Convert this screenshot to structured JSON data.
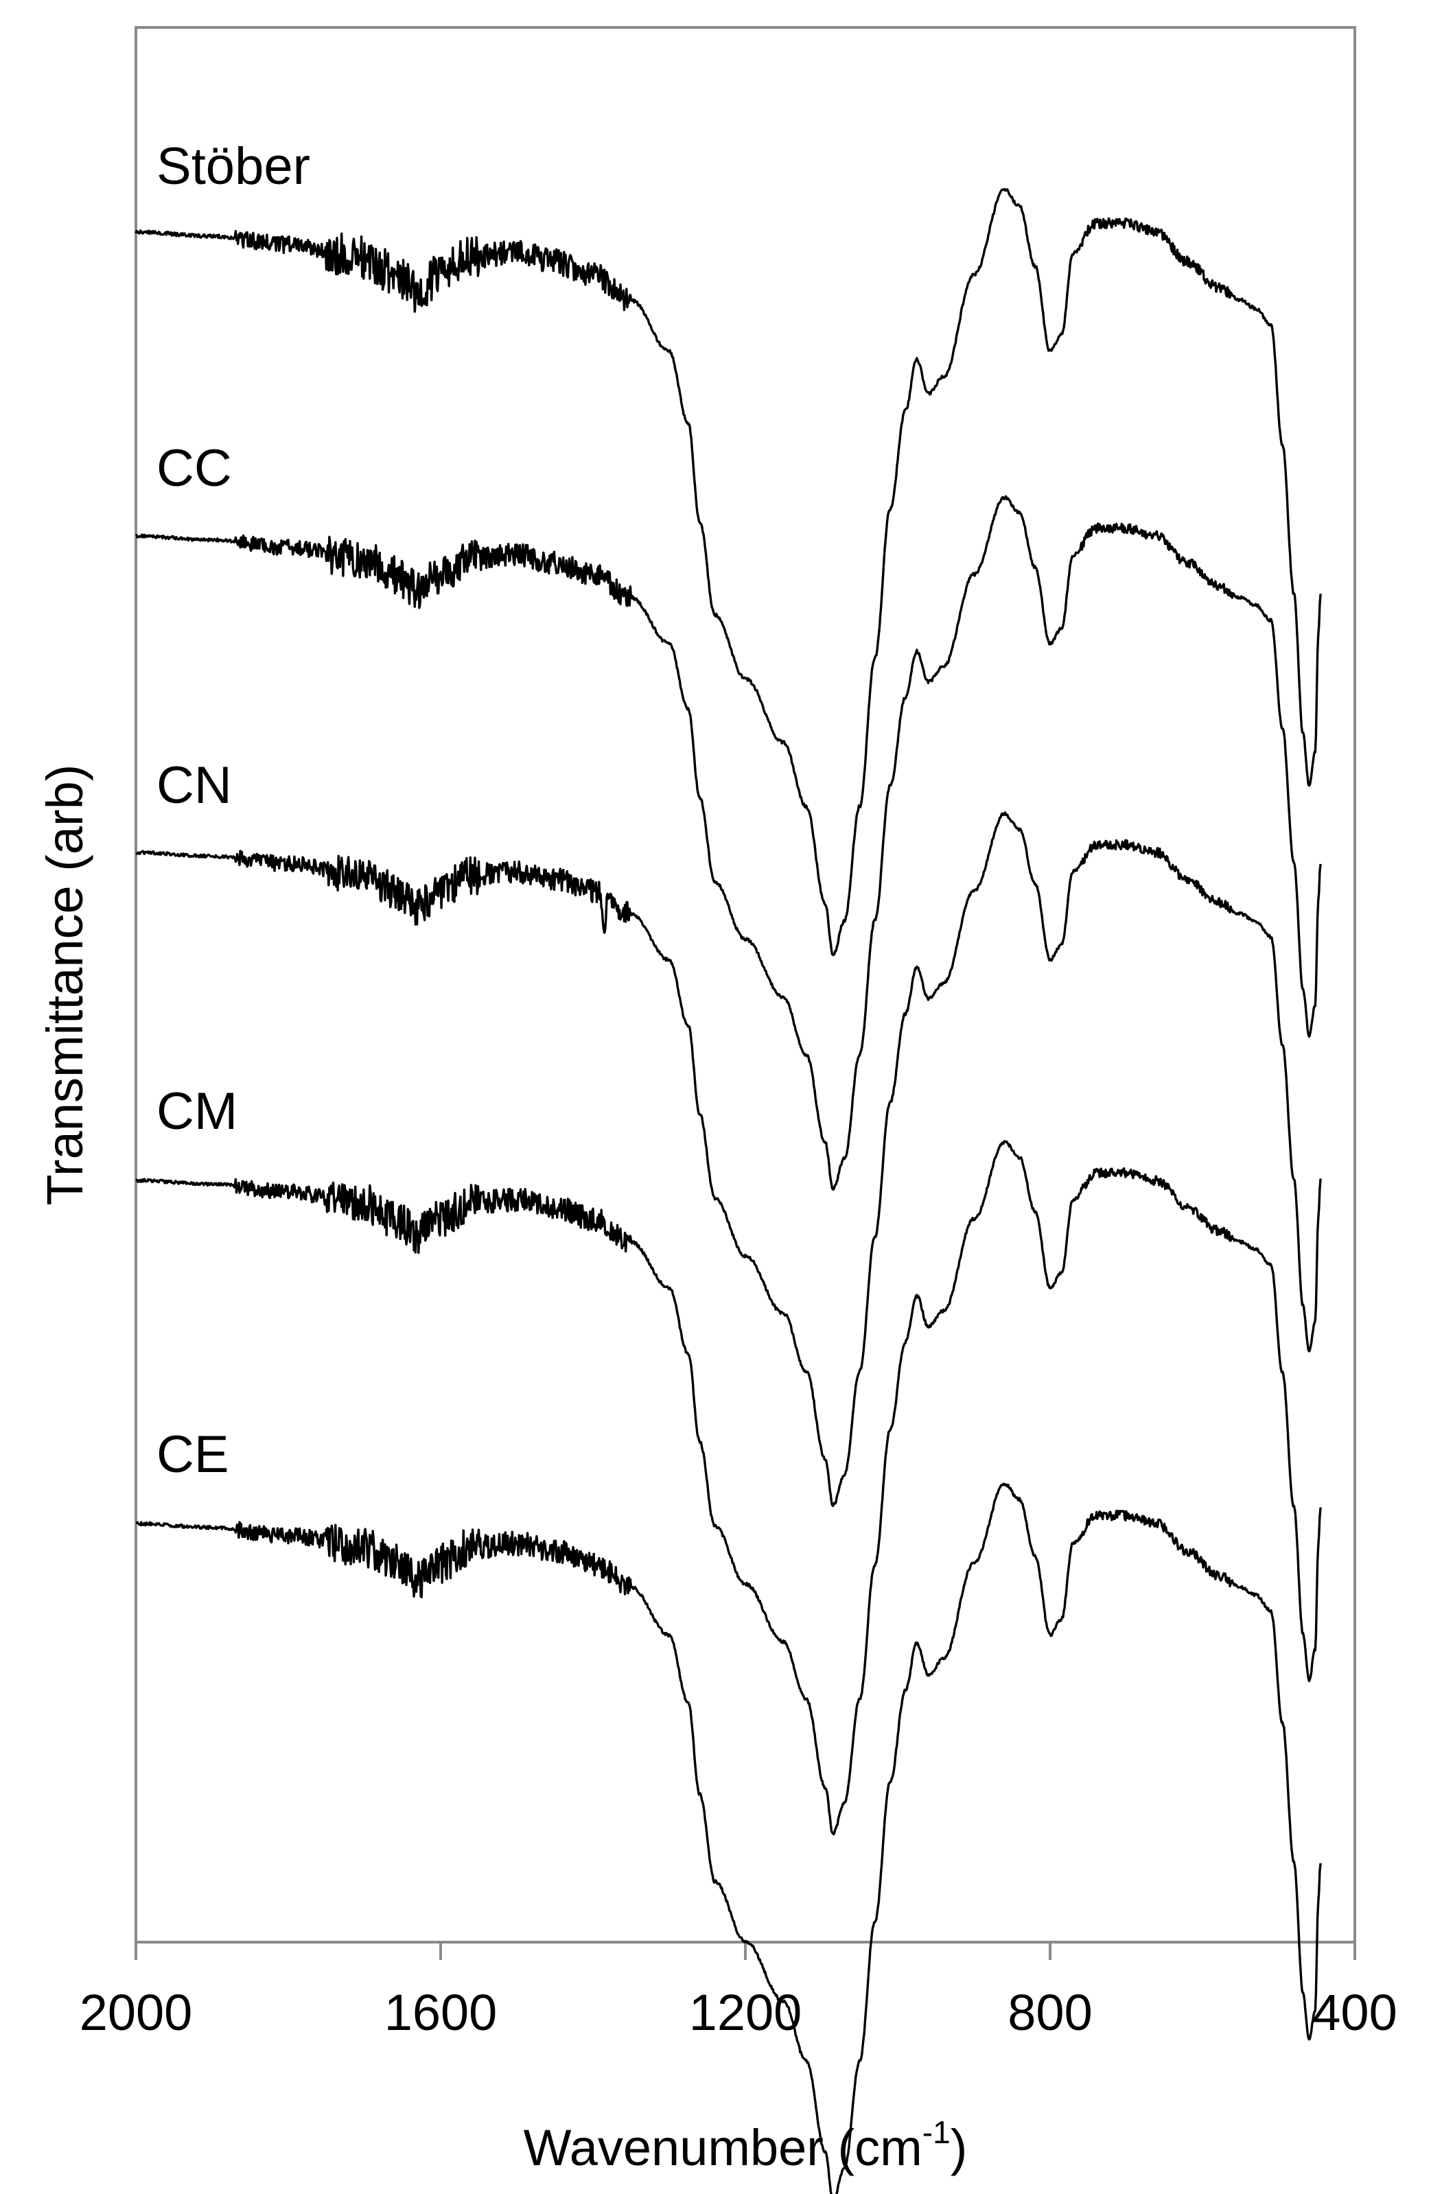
{
  "chart_data": {
    "type": "line",
    "title": "",
    "xlabel": "Wavenumber (cm",
    "xlabel_superscript": "-1",
    "xlabel_suffix": ")",
    "ylabel": "Transmittance (arb)",
    "xlim": [
      2000,
      400
    ],
    "x_reversed": true,
    "yticks_shown": false,
    "grid": false,
    "legend": "none (series labelled inline above each trace)",
    "xticks": [
      2000,
      1600,
      1200,
      800,
      400
    ],
    "x_end": 445,
    "series_shape": {
      "description": "Offset FTIR transmittance traces; values are relative transmittance, 1 = flat baseline at 2000 cm-1, larger dips = stronger absorption",
      "points": [
        [
          2000,
          1.0
        ],
        [
          1900,
          0.99
        ],
        [
          1800,
          0.97
        ],
        [
          1700,
          0.94
        ],
        [
          1660,
          0.9
        ],
        [
          1630,
          0.86
        ],
        [
          1600,
          0.9
        ],
        [
          1560,
          0.94
        ],
        [
          1500,
          0.95
        ],
        [
          1450,
          0.93
        ],
        [
          1400,
          0.9
        ],
        [
          1350,
          0.84
        ],
        [
          1300,
          0.72
        ],
        [
          1275,
          0.55
        ],
        [
          1260,
          0.32
        ],
        [
          1240,
          0.1
        ],
        [
          1200,
          -0.05
        ],
        [
          1150,
          -0.2
        ],
        [
          1120,
          -0.35
        ],
        [
          1095,
          -0.58
        ],
        [
          1085,
          -0.7
        ],
        [
          1070,
          -0.62
        ],
        [
          1050,
          -0.35
        ],
        [
          1030,
          0.0
        ],
        [
          1010,
          0.35
        ],
        [
          990,
          0.58
        ],
        [
          975,
          0.7
        ],
        [
          960,
          0.62
        ],
        [
          940,
          0.66
        ],
        [
          900,
          0.9
        ],
        [
          860,
          1.1
        ],
        [
          840,
          1.06
        ],
        [
          820,
          0.92
        ],
        [
          800,
          0.72
        ],
        [
          785,
          0.76
        ],
        [
          770,
          0.95
        ],
        [
          740,
          1.02
        ],
        [
          700,
          1.02
        ],
        [
          660,
          1.0
        ],
        [
          620,
          0.93
        ],
        [
          580,
          0.87
        ],
        [
          550,
          0.84
        ],
        [
          530,
          0.82
        ],
        [
          510,
          0.78
        ],
        [
          495,
          0.5
        ],
        [
          480,
          0.15
        ],
        [
          468,
          -0.18
        ],
        [
          460,
          -0.3
        ],
        [
          452,
          -0.22
        ],
        [
          448,
          0.05
        ],
        [
          445,
          0.15
        ]
      ]
    },
    "series": [
      {
        "name": "Stöber",
        "extra_features": []
      },
      {
        "name": "CC",
        "extra_features": []
      },
      {
        "name": "CN",
        "extra_features": [
          "sharp small dip near 1385 cm-1"
        ]
      },
      {
        "name": "CM",
        "extra_features": []
      },
      {
        "name": "CE",
        "extra_features": []
      }
    ]
  }
}
